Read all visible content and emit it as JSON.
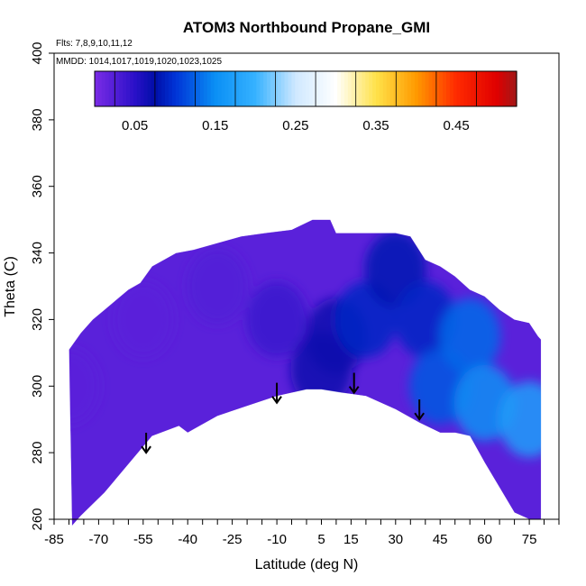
{
  "chart_data": {
    "type": "heatmap",
    "title": "ATOM3 Northbound Propane_GMI",
    "flights_note": "Flts: 7,8,9,10,11,12",
    "dates_note": "MMDD: 1014,1017,1019,1020,1023,1025",
    "xlabel": "Latitude (deg N)",
    "ylabel": "Theta (C)",
    "xlim": [
      -85,
      85
    ],
    "ylim": [
      260,
      400
    ],
    "xticks": [
      -85,
      -70,
      -55,
      -40,
      -25,
      -10,
      5,
      15,
      30,
      45,
      60,
      75
    ],
    "yticks": [
      260,
      280,
      300,
      320,
      340,
      360,
      380,
      400
    ],
    "colorbar": {
      "min": 0.0,
      "max": 0.525,
      "step": 0.025,
      "tick_values": [
        0.05,
        0.15,
        0.25,
        0.35,
        0.45
      ],
      "tick_labels": [
        "0.05",
        "0.15",
        "0.25",
        "0.35",
        "0.45"
      ],
      "stops": [
        {
          "v": 0.0,
          "c": "#7A2CE6"
        },
        {
          "v": 0.05,
          "c": "#2A10C8"
        },
        {
          "v": 0.075,
          "c": "#000EA8"
        },
        {
          "v": 0.1,
          "c": "#0033D6"
        },
        {
          "v": 0.15,
          "c": "#0A8FF5"
        },
        {
          "v": 0.2,
          "c": "#36B2FF"
        },
        {
          "v": 0.25,
          "c": "#CFE8FF"
        },
        {
          "v": 0.3,
          "c": "#FFFFFF"
        },
        {
          "v": 0.35,
          "c": "#FFE24A"
        },
        {
          "v": 0.4,
          "c": "#FF9A00"
        },
        {
          "v": 0.45,
          "c": "#FF2A00"
        },
        {
          "v": 0.5,
          "c": "#E00000"
        },
        {
          "v": 0.525,
          "c": "#A01818"
        }
      ]
    },
    "domain_bottom": [
      [
        -79,
        258
      ],
      [
        -76,
        261
      ],
      [
        -68,
        268
      ],
      [
        -52,
        285
      ],
      [
        -43,
        288
      ],
      [
        -40,
        286
      ],
      [
        -38,
        287
      ],
      [
        -30,
        291
      ],
      [
        -20,
        294
      ],
      [
        -10,
        297
      ],
      [
        0,
        299
      ],
      [
        5,
        299
      ],
      [
        12,
        298
      ],
      [
        20,
        297
      ],
      [
        30,
        293
      ],
      [
        38,
        289
      ],
      [
        45,
        286
      ],
      [
        50,
        286
      ],
      [
        55,
        285
      ],
      [
        60,
        277
      ],
      [
        70,
        262
      ],
      [
        75,
        260
      ],
      [
        79,
        260
      ]
    ],
    "domain_top": [
      [
        -80,
        311
      ],
      [
        -76,
        316
      ],
      [
        -72,
        320
      ],
      [
        -68,
        323
      ],
      [
        -64,
        326
      ],
      [
        -60,
        329
      ],
      [
        -56,
        331
      ],
      [
        -52,
        336
      ],
      [
        -48,
        338
      ],
      [
        -44,
        340
      ],
      [
        -38,
        341
      ],
      [
        -30,
        343
      ],
      [
        -22,
        345
      ],
      [
        -14,
        346
      ],
      [
        -5,
        347
      ],
      [
        2,
        350
      ],
      [
        8,
        350
      ],
      [
        10,
        346
      ],
      [
        20,
        346
      ],
      [
        30,
        346
      ],
      [
        35,
        345
      ],
      [
        40,
        338
      ],
      [
        45,
        336
      ],
      [
        50,
        333
      ],
      [
        55,
        329
      ],
      [
        60,
        327
      ],
      [
        65,
        323
      ],
      [
        70,
        320
      ],
      [
        75,
        319
      ],
      [
        78,
        315
      ],
      [
        79,
        314
      ]
    ],
    "propane_field": [
      {
        "lat": -80,
        "theta": 300,
        "value": 0.02
      },
      {
        "lat": -55,
        "theta": 320,
        "value": 0.02
      },
      {
        "lat": -30,
        "theta": 330,
        "value": 0.025
      },
      {
        "lat": -10,
        "theta": 320,
        "value": 0.04
      },
      {
        "lat": 5,
        "theta": 305,
        "value": 0.07
      },
      {
        "lat": 10,
        "theta": 315,
        "value": 0.07
      },
      {
        "lat": 20,
        "theta": 320,
        "value": 0.09
      },
      {
        "lat": 30,
        "theta": 335,
        "value": 0.08
      },
      {
        "lat": 40,
        "theta": 320,
        "value": 0.09
      },
      {
        "lat": 45,
        "theta": 300,
        "value": 0.12
      },
      {
        "lat": 55,
        "theta": 315,
        "value": 0.13
      },
      {
        "lat": 60,
        "theta": 295,
        "value": 0.15
      },
      {
        "lat": 75,
        "theta": 290,
        "value": 0.17
      }
    ],
    "arrows": [
      {
        "lat": -54,
        "theta_top": 286,
        "theta_tip": 280
      },
      {
        "lat": -10,
        "theta_top": 301,
        "theta_tip": 295
      },
      {
        "lat": 16,
        "theta_top": 304,
        "theta_tip": 298
      },
      {
        "lat": 38,
        "theta_top": 296,
        "theta_tip": 290
      }
    ]
  }
}
